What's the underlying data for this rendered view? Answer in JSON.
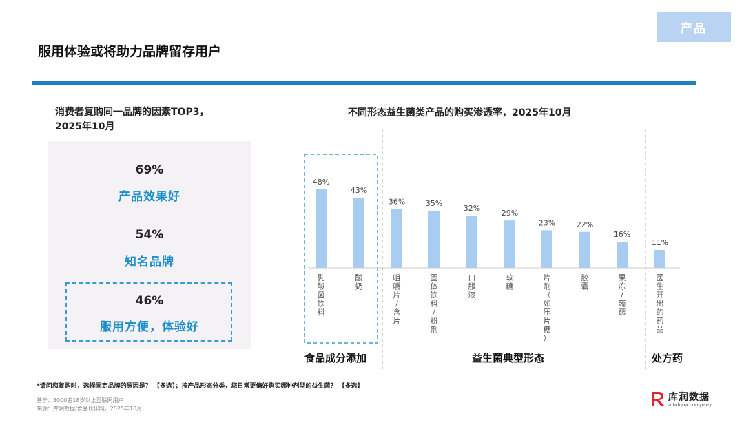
{
  "tag": "产品",
  "page_title": "服用体验或将助力品牌留存用户",
  "left": {
    "title_line1": "消费者复购同一品牌的因素TOP3，",
    "title_line2": "2025年10月",
    "items": [
      {
        "pct": "69%",
        "label": "产品效果好"
      },
      {
        "pct": "54%",
        "label": "知名品牌"
      },
      {
        "pct": "46%",
        "label": "服用方便，体验好"
      }
    ]
  },
  "chart_data": {
    "type": "bar",
    "title": "不同形态益生菌类产品的购买渗透率，2025年10月",
    "categories": [
      "乳酸菌饮料",
      "酸奶",
      "咀嚼片/含片",
      "固体饮料/粉剂",
      "口服液",
      "软糖",
      "片剂（如压片糖）",
      "胶囊",
      "果冻/蒟蒻",
      "医生开出的药品"
    ],
    "values": [
      48,
      43,
      36,
      35,
      32,
      29,
      23,
      22,
      16,
      11
    ],
    "value_labels": [
      "48%",
      "43%",
      "36%",
      "35%",
      "32%",
      "29%",
      "23%",
      "22%",
      "16%",
      "11%"
    ],
    "ylim": [
      0,
      50
    ],
    "xlabel": "",
    "ylabel": "",
    "groups": [
      {
        "name": "食品成分添加",
        "categories": [
          "乳酸菌饮料",
          "酸奶"
        ]
      },
      {
        "name": "益生菌典型形态",
        "categories": [
          "咀嚼片/含片",
          "固体饮料/粉剂",
          "口服液",
          "软糖",
          "片剂（如压片糖）",
          "胶囊",
          "果冻/蒟蒻"
        ]
      },
      {
        "name": "处方药",
        "categories": [
          "医生开出的药品"
        ]
      }
    ],
    "colors": {
      "bar": "#a9cdf0",
      "axis": "#cccccc",
      "divider": "#aaaaaa",
      "highlight": "#3a9bd0"
    }
  },
  "footnote": "*请问您复购时，选择固定品牌的原因是？ 【多选】；按产品形态分类，您日常更偏好购买哪种剂型的益生菌？ 【多选】",
  "base_note": "基于：3000名18岁以上互联网用户",
  "source_note": "来源：库润数据/食品伙伴网，2025年10月",
  "logo": {
    "name": "库润数据",
    "sub": "a toluna company",
    "color": "#e0262c"
  }
}
